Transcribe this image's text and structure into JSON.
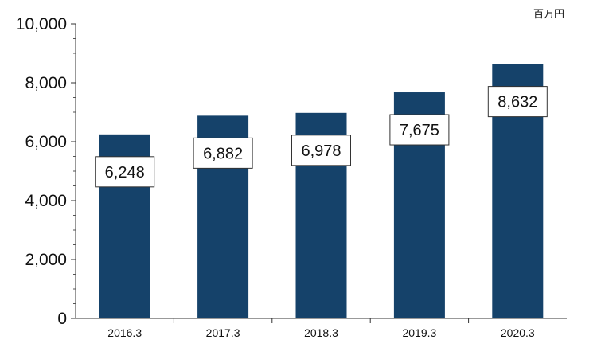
{
  "chart_data": {
    "type": "bar",
    "categories": [
      "2016.3",
      "2017.3",
      "2018.3",
      "2019.3",
      "2020.3"
    ],
    "values": [
      6248,
      6882,
      6978,
      7675,
      8632
    ],
    "data_labels": [
      "6,248",
      "6,882",
      "6,978",
      "7,675",
      "8,632"
    ],
    "unit": "百万円",
    "ylim": [
      0,
      10000
    ],
    "yticks": [
      0,
      2000,
      4000,
      6000,
      8000,
      10000
    ],
    "ytick_labels": [
      "0",
      "2,000",
      "4,000",
      "6,000",
      "8,000",
      "10,000"
    ],
    "bar_color": "#15426a",
    "grid": false,
    "legend": "none"
  }
}
